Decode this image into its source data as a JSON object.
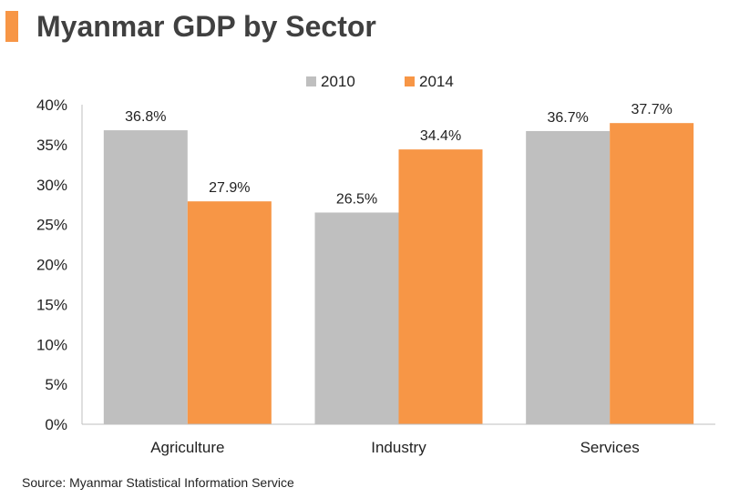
{
  "colors": {
    "accent": "#F79646",
    "series_2010": "#BFBFBF",
    "series_2014": "#F79646",
    "axis": "#BFBFBF",
    "text": "#222222"
  },
  "header": {
    "title": "Myanmar GDP by Sector"
  },
  "footer": {
    "source": "Source: Myanmar Statistical Information Service"
  },
  "chart_data": {
    "type": "bar",
    "title": "Myanmar GDP by Sector",
    "categories": [
      "Agriculture",
      "Industry",
      "Services"
    ],
    "series": [
      {
        "name": "2010",
        "values": [
          36.8,
          26.5,
          36.7
        ],
        "labels": [
          "36.8%",
          "26.5%",
          "36.7%"
        ],
        "color": "#BFBFBF"
      },
      {
        "name": "2014",
        "values": [
          27.9,
          34.4,
          37.7
        ],
        "labels": [
          "27.9%",
          "34.4%",
          "37.7%"
        ],
        "color": "#F79646"
      }
    ],
    "ylim": [
      0,
      40
    ],
    "yticks": [
      0,
      5,
      10,
      15,
      20,
      25,
      30,
      35,
      40
    ],
    "ytick_labels": [
      "0%",
      "5%",
      "10%",
      "15%",
      "20%",
      "25%",
      "30%",
      "35%",
      "40%"
    ],
    "xlabel": "",
    "ylabel": "",
    "legend_position": "top-center",
    "grid": false
  }
}
